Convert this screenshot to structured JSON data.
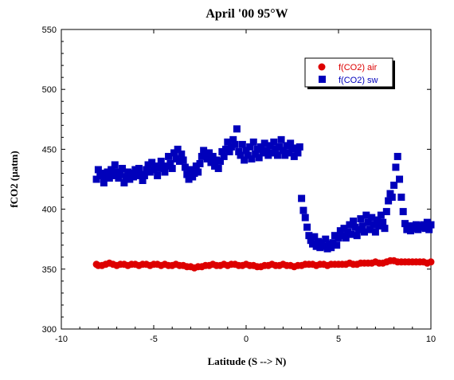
{
  "chart_data": {
    "type": "scatter",
    "title": "April '00 95°W",
    "xlabel": "Latitude (S --> N)",
    "ylabel": "fCO2 (µatm)",
    "xlim": [
      -10,
      10
    ],
    "ylim": [
      300,
      550
    ],
    "xticks": [
      -10,
      -5,
      0,
      5,
      10
    ],
    "xtick_labels": [
      "-10",
      "-5",
      "0",
      "5",
      "10"
    ],
    "yticks": [
      300,
      350,
      400,
      450,
      500,
      550
    ],
    "ytick_labels": [
      "300",
      "350",
      "400",
      "450",
      "500",
      "550"
    ],
    "grid": false,
    "legend_position": "top-right",
    "series": [
      {
        "name": "f(CO2) air",
        "marker": "circle",
        "color": "#dd0000",
        "points": [
          [
            -8.1,
            354
          ],
          [
            -8.0,
            353
          ],
          [
            -7.8,
            353
          ],
          [
            -7.6,
            354
          ],
          [
            -7.4,
            355
          ],
          [
            -7.2,
            354
          ],
          [
            -7.0,
            353
          ],
          [
            -6.8,
            354
          ],
          [
            -6.6,
            354
          ],
          [
            -6.4,
            353
          ],
          [
            -6.2,
            354
          ],
          [
            -6.0,
            354
          ],
          [
            -5.8,
            353
          ],
          [
            -5.6,
            354
          ],
          [
            -5.4,
            354
          ],
          [
            -5.2,
            353
          ],
          [
            -5.0,
            354
          ],
          [
            -4.8,
            354
          ],
          [
            -4.6,
            353
          ],
          [
            -4.4,
            354
          ],
          [
            -4.2,
            353
          ],
          [
            -4.0,
            353
          ],
          [
            -3.8,
            354
          ],
          [
            -3.6,
            353
          ],
          [
            -3.4,
            353
          ],
          [
            -3.2,
            352
          ],
          [
            -3.0,
            352
          ],
          [
            -2.8,
            351
          ],
          [
            -2.6,
            352
          ],
          [
            -2.4,
            352
          ],
          [
            -2.2,
            353
          ],
          [
            -2.0,
            353
          ],
          [
            -1.8,
            354
          ],
          [
            -1.6,
            353
          ],
          [
            -1.4,
            353
          ],
          [
            -1.2,
            354
          ],
          [
            -1.0,
            353
          ],
          [
            -0.8,
            354
          ],
          [
            -0.6,
            354
          ],
          [
            -0.4,
            353
          ],
          [
            -0.2,
            353
          ],
          [
            0.0,
            354
          ],
          [
            0.2,
            353
          ],
          [
            0.4,
            353
          ],
          [
            0.6,
            352
          ],
          [
            0.8,
            352
          ],
          [
            1.0,
            353
          ],
          [
            1.2,
            353
          ],
          [
            1.4,
            354
          ],
          [
            1.6,
            353
          ],
          [
            1.8,
            353
          ],
          [
            2.0,
            354
          ],
          [
            2.2,
            353
          ],
          [
            2.4,
            353
          ],
          [
            2.6,
            352
          ],
          [
            2.8,
            353
          ],
          [
            3.0,
            353
          ],
          [
            3.2,
            354
          ],
          [
            3.4,
            354
          ],
          [
            3.6,
            354
          ],
          [
            3.8,
            353
          ],
          [
            4.0,
            354
          ],
          [
            4.2,
            354
          ],
          [
            4.4,
            353
          ],
          [
            4.6,
            354
          ],
          [
            4.8,
            354
          ],
          [
            5.0,
            354
          ],
          [
            5.2,
            354
          ],
          [
            5.4,
            354
          ],
          [
            5.6,
            355
          ],
          [
            5.8,
            354
          ],
          [
            6.0,
            354
          ],
          [
            6.2,
            355
          ],
          [
            6.4,
            355
          ],
          [
            6.6,
            355
          ],
          [
            6.8,
            355
          ],
          [
            7.0,
            356
          ],
          [
            7.2,
            355
          ],
          [
            7.4,
            355
          ],
          [
            7.6,
            356
          ],
          [
            7.8,
            357
          ],
          [
            8.0,
            357
          ],
          [
            8.2,
            356
          ],
          [
            8.4,
            356
          ],
          [
            8.6,
            356
          ],
          [
            8.8,
            356
          ],
          [
            9.0,
            356
          ],
          [
            9.2,
            356
          ],
          [
            9.4,
            356
          ],
          [
            9.6,
            356
          ],
          [
            9.8,
            355
          ],
          [
            10.0,
            356
          ]
        ]
      },
      {
        "name": "f(CO2) sw",
        "marker": "square",
        "color": "#0000bb",
        "points": [
          [
            -8.1,
            425
          ],
          [
            -8.0,
            433
          ],
          [
            -7.9,
            428
          ],
          [
            -7.8,
            430
          ],
          [
            -7.7,
            422
          ],
          [
            -7.6,
            427
          ],
          [
            -7.5,
            431
          ],
          [
            -7.4,
            426
          ],
          [
            -7.3,
            433
          ],
          [
            -7.2,
            428
          ],
          [
            -7.1,
            437
          ],
          [
            -7.0,
            431
          ],
          [
            -6.9,
            426
          ],
          [
            -6.8,
            429
          ],
          [
            -6.7,
            434
          ],
          [
            -6.6,
            422
          ],
          [
            -6.5,
            427
          ],
          [
            -6.4,
            431
          ],
          [
            -6.3,
            425
          ],
          [
            -6.2,
            430
          ],
          [
            -6.1,
            427
          ],
          [
            -6.0,
            433
          ],
          [
            -5.9,
            428
          ],
          [
            -5.8,
            434
          ],
          [
            -5.7,
            429
          ],
          [
            -5.6,
            424
          ],
          [
            -5.5,
            428
          ],
          [
            -5.4,
            433
          ],
          [
            -5.3,
            437
          ],
          [
            -5.2,
            431
          ],
          [
            -5.1,
            439
          ],
          [
            -5.0,
            433
          ],
          [
            -4.9,
            436
          ],
          [
            -4.8,
            428
          ],
          [
            -4.7,
            434
          ],
          [
            -4.6,
            440
          ],
          [
            -4.5,
            436
          ],
          [
            -4.4,
            431
          ],
          [
            -4.3,
            436
          ],
          [
            -4.2,
            444
          ],
          [
            -4.1,
            438
          ],
          [
            -4.0,
            434
          ],
          [
            -3.9,
            447
          ],
          [
            -3.8,
            442
          ],
          [
            -3.7,
            450
          ],
          [
            -3.6,
            440
          ],
          [
            -3.5,
            446
          ],
          [
            -3.4,
            441
          ],
          [
            -3.3,
            435
          ],
          [
            -3.2,
            429
          ],
          [
            -3.1,
            425
          ],
          [
            -3.0,
            433
          ],
          [
            -2.9,
            427
          ],
          [
            -2.8,
            430
          ],
          [
            -2.7,
            436
          ],
          [
            -2.6,
            431
          ],
          [
            -2.5,
            438
          ],
          [
            -2.4,
            444
          ],
          [
            -2.3,
            449
          ],
          [
            -2.2,
            445
          ],
          [
            -2.1,
            442
          ],
          [
            -2.0,
            447
          ],
          [
            -1.9,
            439
          ],
          [
            -1.8,
            444
          ],
          [
            -1.7,
            436
          ],
          [
            -1.6,
            441
          ],
          [
            -1.5,
            434
          ],
          [
            -1.4,
            440
          ],
          [
            -1.3,
            448
          ],
          [
            -1.2,
            444
          ],
          [
            -1.1,
            450
          ],
          [
            -1.0,
            456
          ],
          [
            -0.9,
            448
          ],
          [
            -0.8,
            452
          ],
          [
            -0.7,
            458
          ],
          [
            -0.6,
            454
          ],
          [
            -0.5,
            467
          ],
          [
            -0.4,
            448
          ],
          [
            -0.3,
            445
          ],
          [
            -0.2,
            454
          ],
          [
            -0.1,
            441
          ],
          [
            0.0,
            449
          ],
          [
            0.1,
            445
          ],
          [
            0.2,
            452
          ],
          [
            0.3,
            442
          ],
          [
            0.4,
            456
          ],
          [
            0.5,
            446
          ],
          [
            0.6,
            450
          ],
          [
            0.7,
            443
          ],
          [
            0.8,
            452
          ],
          [
            0.9,
            447
          ],
          [
            1.0,
            455
          ],
          [
            1.1,
            449
          ],
          [
            1.2,
            445
          ],
          [
            1.3,
            453
          ],
          [
            1.4,
            447
          ],
          [
            1.5,
            456
          ],
          [
            1.6,
            450
          ],
          [
            1.7,
            445
          ],
          [
            1.8,
            452
          ],
          [
            1.9,
            458
          ],
          [
            2.0,
            449
          ],
          [
            2.1,
            445
          ],
          [
            2.2,
            453
          ],
          [
            2.3,
            447
          ],
          [
            2.4,
            455
          ],
          [
            2.5,
            450
          ],
          [
            2.6,
            444
          ],
          [
            2.7,
            451
          ],
          [
            2.8,
            447
          ],
          [
            2.9,
            452
          ],
          [
            3.0,
            409
          ],
          [
            3.1,
            399
          ],
          [
            3.2,
            393
          ],
          [
            3.3,
            385
          ],
          [
            3.4,
            378
          ],
          [
            3.5,
            374
          ],
          [
            3.6,
            371
          ],
          [
            3.7,
            377
          ],
          [
            3.8,
            369
          ],
          [
            3.9,
            373
          ],
          [
            4.0,
            368
          ],
          [
            4.1,
            372
          ],
          [
            4.2,
            369
          ],
          [
            4.3,
            375
          ],
          [
            4.4,
            367
          ],
          [
            4.5,
            371
          ],
          [
            4.6,
            368
          ],
          [
            4.7,
            372
          ],
          [
            4.8,
            378
          ],
          [
            4.9,
            370
          ],
          [
            5.0,
            376
          ],
          [
            5.1,
            382
          ],
          [
            5.2,
            378
          ],
          [
            5.3,
            384
          ],
          [
            5.4,
            376
          ],
          [
            5.5,
            381
          ],
          [
            5.6,
            387
          ],
          [
            5.7,
            379
          ],
          [
            5.8,
            390
          ],
          [
            5.9,
            385
          ],
          [
            6.0,
            378
          ],
          [
            6.1,
            383
          ],
          [
            6.2,
            392
          ],
          [
            6.3,
            386
          ],
          [
            6.4,
            381
          ],
          [
            6.5,
            395
          ],
          [
            6.6,
            389
          ],
          [
            6.7,
            383
          ],
          [
            6.8,
            393
          ],
          [
            6.9,
            387
          ],
          [
            7.0,
            381
          ],
          [
            7.1,
            391
          ],
          [
            7.2,
            386
          ],
          [
            7.3,
            395
          ],
          [
            7.4,
            389
          ],
          [
            7.5,
            384
          ],
          [
            7.6,
            398
          ],
          [
            7.7,
            407
          ],
          [
            7.8,
            413
          ],
          [
            7.9,
            410
          ],
          [
            8.0,
            420
          ],
          [
            8.1,
            435
          ],
          [
            8.2,
            444
          ],
          [
            8.3,
            425
          ],
          [
            8.4,
            410
          ],
          [
            8.5,
            398
          ],
          [
            8.6,
            388
          ],
          [
            8.7,
            383
          ],
          [
            8.8,
            386
          ],
          [
            8.9,
            382
          ],
          [
            9.0,
            386
          ],
          [
            9.1,
            384
          ],
          [
            9.2,
            387
          ],
          [
            9.3,
            383
          ],
          [
            9.4,
            386
          ],
          [
            9.5,
            385
          ],
          [
            9.6,
            387
          ],
          [
            9.7,
            384
          ],
          [
            9.8,
            389
          ],
          [
            9.9,
            383
          ],
          [
            10.0,
            387
          ]
        ]
      }
    ]
  }
}
